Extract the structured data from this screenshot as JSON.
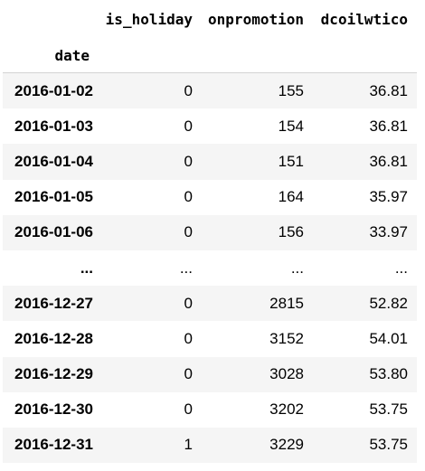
{
  "table": {
    "columns": [
      "is_holiday",
      "onpromotion",
      "dcoilwtico"
    ],
    "index_name": "date",
    "rows": [
      {
        "date": "2016-01-02",
        "is_holiday": "0",
        "onpromotion": "155",
        "dcoilwtico": "36.81"
      },
      {
        "date": "2016-01-03",
        "is_holiday": "0",
        "onpromotion": "154",
        "dcoilwtico": "36.81"
      },
      {
        "date": "2016-01-04",
        "is_holiday": "0",
        "onpromotion": "151",
        "dcoilwtico": "36.81"
      },
      {
        "date": "2016-01-05",
        "is_holiday": "0",
        "onpromotion": "164",
        "dcoilwtico": "35.97"
      },
      {
        "date": "2016-01-06",
        "is_holiday": "0",
        "onpromotion": "156",
        "dcoilwtico": "33.97"
      },
      {
        "date": "...",
        "is_holiday": "...",
        "onpromotion": "...",
        "dcoilwtico": "..."
      },
      {
        "date": "2016-12-27",
        "is_holiday": "0",
        "onpromotion": "2815",
        "dcoilwtico": "52.82"
      },
      {
        "date": "2016-12-28",
        "is_holiday": "0",
        "onpromotion": "3152",
        "dcoilwtico": "54.01"
      },
      {
        "date": "2016-12-29",
        "is_holiday": "0",
        "onpromotion": "3028",
        "dcoilwtico": "53.80"
      },
      {
        "date": "2016-12-30",
        "is_holiday": "0",
        "onpromotion": "3202",
        "dcoilwtico": "53.75"
      },
      {
        "date": "2016-12-31",
        "is_holiday": "1",
        "onpromotion": "3229",
        "dcoilwtico": "53.75"
      }
    ]
  }
}
